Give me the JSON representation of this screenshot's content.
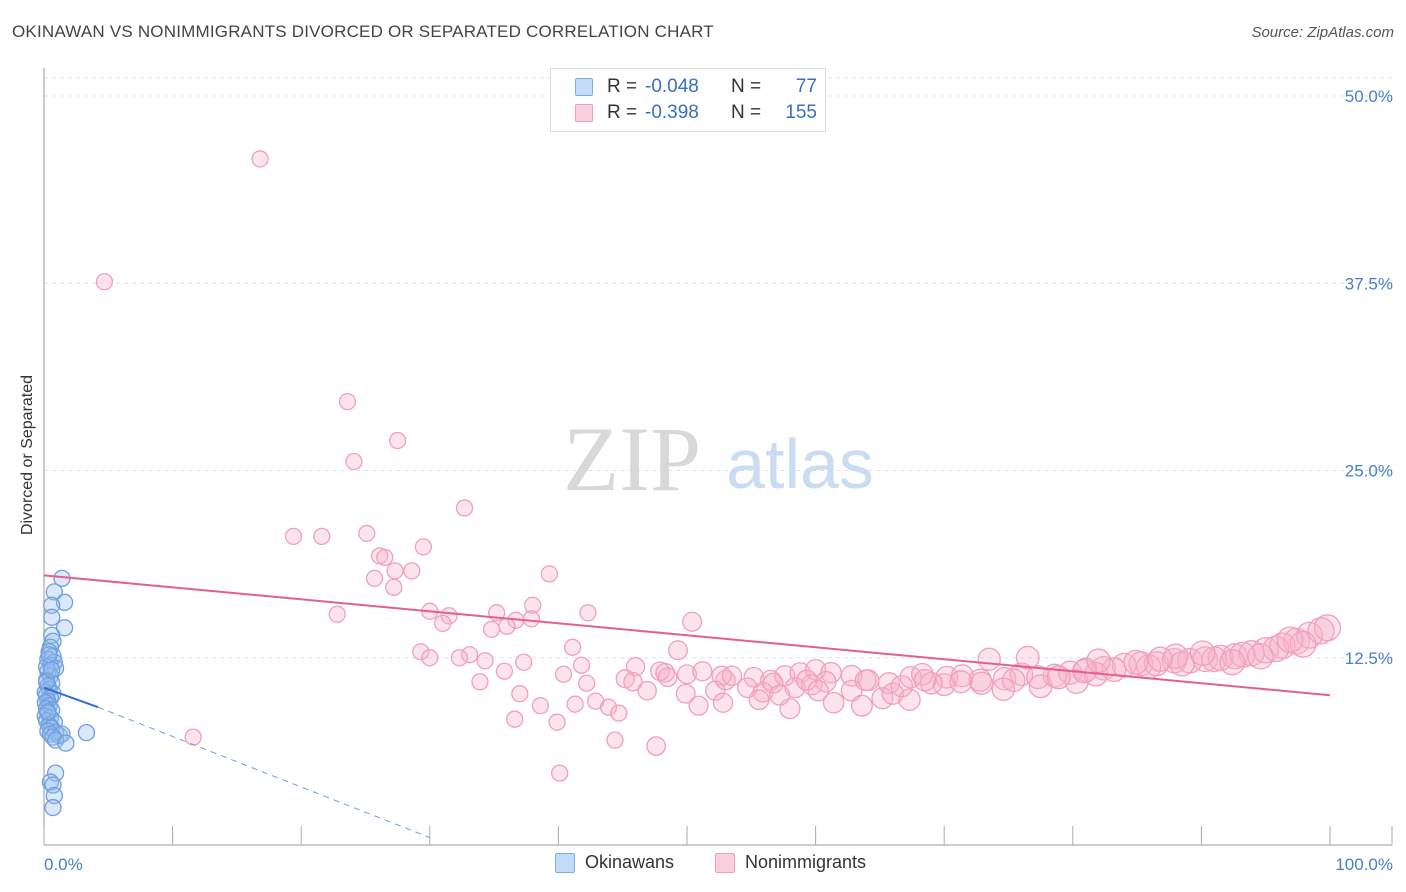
{
  "header": {
    "title": "OKINAWAN VS NONIMMIGRANTS DIVORCED OR SEPARATED CORRELATION CHART",
    "source": "Source: ZipAtlas.com"
  },
  "legend": {
    "rows": [
      {
        "r_label": "R =",
        "r_value": "-0.048",
        "n_label": "N =",
        "n_value": "77",
        "color": "#7aaee8"
      },
      {
        "r_label": "R =",
        "r_value": "-0.398",
        "n_label": "N =",
        "n_value": "155",
        "color": "#f0a0b8"
      }
    ]
  },
  "bottom_legend": {
    "okinawans": "Okinawans",
    "nonimmigrants": "Nonimmigrants"
  },
  "watermark": {
    "zip": "ZIP",
    "atlas": "atlas"
  },
  "chart_data": {
    "type": "scatter",
    "title": "OKINAWAN VS NONIMMIGRANTS DIVORCED OR SEPARATED CORRELATION CHART",
    "xlabel": "",
    "ylabel": "Divorced or Separated",
    "xlim": [
      0,
      100
    ],
    "ylim": [
      0,
      50
    ],
    "x_tick_labels": [
      "0.0%",
      "100.0%"
    ],
    "y_tick_labels": [
      "12.5%",
      "25.0%",
      "37.5%",
      "50.0%"
    ],
    "y_ticks": [
      12.5,
      25.0,
      37.5,
      50.0
    ],
    "grid": true,
    "colors": {
      "okinawans": "#7aaee8",
      "okinawans_line": "#2f6fd0",
      "nonimmigrants": "#f0a0b8",
      "nonimmigrants_line": "#e4608a"
    },
    "series": [
      {
        "name": "Okinawans",
        "trend": {
          "x": [
            0,
            4.2
          ],
          "y": [
            10.5,
            9.2
          ],
          "extended_to_x": 30,
          "extended_y": 0.5
        },
        "points": [
          [
            1.4,
            17.8
          ],
          [
            0.8,
            16.9
          ],
          [
            1.6,
            16.2
          ],
          [
            0.6,
            16.0
          ],
          [
            0.6,
            15.2
          ],
          [
            1.6,
            14.5
          ],
          [
            0.6,
            14.0
          ],
          [
            0.7,
            13.6
          ],
          [
            0.5,
            13.2
          ],
          [
            0.4,
            12.9
          ],
          [
            0.7,
            12.6
          ],
          [
            0.3,
            12.4
          ],
          [
            0.8,
            12.2
          ],
          [
            0.5,
            12.0
          ],
          [
            0.9,
            11.8
          ],
          [
            0.3,
            11.6
          ],
          [
            0.5,
            11.3
          ],
          [
            0.2,
            11.0
          ],
          [
            0.6,
            10.8
          ],
          [
            0.3,
            10.6
          ],
          [
            0.4,
            10.4
          ],
          [
            0.1,
            10.2
          ],
          [
            0.7,
            10.1
          ],
          [
            0.2,
            10.0
          ],
          [
            0.5,
            9.8
          ],
          [
            0.3,
            9.6
          ],
          [
            0.1,
            9.5
          ],
          [
            0.4,
            9.3
          ],
          [
            0.2,
            9.1
          ],
          [
            0.6,
            9.0
          ],
          [
            0.3,
            8.8
          ],
          [
            0.1,
            8.6
          ],
          [
            0.5,
            8.5
          ],
          [
            0.2,
            8.3
          ],
          [
            0.8,
            8.2
          ],
          [
            0.4,
            8.0
          ],
          [
            0.6,
            7.8
          ],
          [
            0.3,
            7.6
          ],
          [
            0.9,
            7.5
          ],
          [
            0.5,
            7.4
          ],
          [
            1.2,
            7.3
          ],
          [
            3.3,
            7.5
          ],
          [
            1.4,
            7.4
          ],
          [
            0.7,
            7.2
          ],
          [
            0.9,
            7.0
          ],
          [
            1.7,
            6.8
          ],
          [
            0.9,
            4.8
          ],
          [
            0.5,
            4.2
          ],
          [
            0.7,
            4.0
          ],
          [
            0.8,
            3.3
          ],
          [
            0.7,
            2.5
          ],
          [
            0.2,
            11.9
          ],
          [
            0.4,
            12.7
          ],
          [
            0.2,
            10.9
          ],
          [
            0.6,
            11.7
          ],
          [
            0.3,
            8.9
          ]
        ]
      },
      {
        "name": "Nonimmigrants",
        "trend": {
          "x": [
            0,
            100
          ],
          "y": [
            18.0,
            10.0
          ]
        },
        "points": [
          [
            16.8,
            45.8
          ],
          [
            4.7,
            37.6
          ],
          [
            23.6,
            29.6
          ],
          [
            27.5,
            27.0
          ],
          [
            24.1,
            25.6
          ],
          [
            32.7,
            22.5
          ],
          [
            19.4,
            20.6
          ],
          [
            21.6,
            20.6
          ],
          [
            25.1,
            20.8
          ],
          [
            29.5,
            19.9
          ],
          [
            26.1,
            19.3
          ],
          [
            26.5,
            19.2
          ],
          [
            27.3,
            18.3
          ],
          [
            28.6,
            18.3
          ],
          [
            25.7,
            17.8
          ],
          [
            39.3,
            18.1
          ],
          [
            27.2,
            17.2
          ],
          [
            38.0,
            16.0
          ],
          [
            42.3,
            15.5
          ],
          [
            22.8,
            15.4
          ],
          [
            30.0,
            15.6
          ],
          [
            31.5,
            15.3
          ],
          [
            35.2,
            15.5
          ],
          [
            36.7,
            15.0
          ],
          [
            37.9,
            15.1
          ],
          [
            31.0,
            14.8
          ],
          [
            36.0,
            14.6
          ],
          [
            34.8,
            14.4
          ],
          [
            50.4,
            14.9
          ],
          [
            41.1,
            13.2
          ],
          [
            29.3,
            12.9
          ],
          [
            33.1,
            12.7
          ],
          [
            32.3,
            12.5
          ],
          [
            30.0,
            12.5
          ],
          [
            49.3,
            13.0
          ],
          [
            34.3,
            12.3
          ],
          [
            37.3,
            12.2
          ],
          [
            41.8,
            12.0
          ],
          [
            46.0,
            11.9
          ],
          [
            50.0,
            11.4
          ],
          [
            53.0,
            11.0
          ],
          [
            47.9,
            11.6
          ],
          [
            35.8,
            11.6
          ],
          [
            40.4,
            11.4
          ],
          [
            45.2,
            11.1
          ],
          [
            48.3,
            11.5
          ],
          [
            52.7,
            11.3
          ],
          [
            55.2,
            11.2
          ],
          [
            56.5,
            11.0
          ],
          [
            57.6,
            11.3
          ],
          [
            58.8,
            11.5
          ],
          [
            60.0,
            11.7
          ],
          [
            61.2,
            11.5
          ],
          [
            62.8,
            11.3
          ],
          [
            64.1,
            11.0
          ],
          [
            65.7,
            10.8
          ],
          [
            67.4,
            11.2
          ],
          [
            68.3,
            11.4
          ],
          [
            70.2,
            11.2
          ],
          [
            71.4,
            11.3
          ],
          [
            72.8,
            11.0
          ],
          [
            74.7,
            11.1
          ],
          [
            76.0,
            11.4
          ],
          [
            77.3,
            11.2
          ],
          [
            78.6,
            11.3
          ],
          [
            79.8,
            11.5
          ],
          [
            81.0,
            11.7
          ],
          [
            82.4,
            11.8
          ],
          [
            84.0,
            12.0
          ],
          [
            85.3,
            12.1
          ],
          [
            86.5,
            12.1
          ],
          [
            87.9,
            12.3
          ],
          [
            89.1,
            12.3
          ],
          [
            90.3,
            12.4
          ],
          [
            91.5,
            12.5
          ],
          [
            92.6,
            12.6
          ],
          [
            93.9,
            12.8
          ],
          [
            95.0,
            13.0
          ],
          [
            96.3,
            13.3
          ],
          [
            97.4,
            13.6
          ],
          [
            98.4,
            14.0
          ],
          [
            99.3,
            14.3
          ],
          [
            42.9,
            9.6
          ],
          [
            43.9,
            9.2
          ],
          [
            44.7,
            8.8
          ],
          [
            46.9,
            10.3
          ],
          [
            50.9,
            9.3
          ],
          [
            52.2,
            10.3
          ],
          [
            54.7,
            10.5
          ],
          [
            55.9,
            10.2
          ],
          [
            58.4,
            10.5
          ],
          [
            59.7,
            10.7
          ],
          [
            62.8,
            10.3
          ],
          [
            65.2,
            9.8
          ],
          [
            66.0,
            10.1
          ],
          [
            67.3,
            9.7
          ],
          [
            70.0,
            10.7
          ],
          [
            71.3,
            10.9
          ],
          [
            74.6,
            10.4
          ],
          [
            77.5,
            10.6
          ],
          [
            80.3,
            10.9
          ],
          [
            48.5,
            11.2
          ],
          [
            51.2,
            11.6
          ],
          [
            53.5,
            11.3
          ],
          [
            56.7,
            10.8
          ],
          [
            60.8,
            10.9
          ],
          [
            63.9,
            11.0
          ],
          [
            66.7,
            10.6
          ],
          [
            69.0,
            10.8
          ],
          [
            72.9,
            10.8
          ],
          [
            75.4,
            11.0
          ],
          [
            78.9,
            11.2
          ],
          [
            81.8,
            11.4
          ],
          [
            83.2,
            11.7
          ],
          [
            85.9,
            11.9
          ],
          [
            88.5,
            12.1
          ],
          [
            91.0,
            12.4
          ],
          [
            93.2,
            12.7
          ],
          [
            95.8,
            13.1
          ],
          [
            97.9,
            13.4
          ],
          [
            88.0,
            12.6
          ],
          [
            76.5,
            12.5
          ],
          [
            73.5,
            12.4
          ],
          [
            80.9,
            11.6
          ],
          [
            84.9,
            12.2
          ],
          [
            90.1,
            12.8
          ],
          [
            92.4,
            12.2
          ],
          [
            94.6,
            12.6
          ],
          [
            96.9,
            13.7
          ],
          [
            99.8,
            14.5
          ],
          [
            36.6,
            8.4
          ],
          [
            39.9,
            8.2
          ],
          [
            44.4,
            7.0
          ],
          [
            47.6,
            6.6
          ],
          [
            37.0,
            10.1
          ],
          [
            38.6,
            9.3
          ],
          [
            41.3,
            9.4
          ],
          [
            58.0,
            9.1
          ],
          [
            61.4,
            9.5
          ],
          [
            63.6,
            9.3
          ],
          [
            11.6,
            7.2
          ],
          [
            40.1,
            4.8
          ],
          [
            33.9,
            10.9
          ],
          [
            42.2,
            10.8
          ],
          [
            45.8,
            10.9
          ],
          [
            49.9,
            10.1
          ],
          [
            52.8,
            9.5
          ],
          [
            55.6,
            9.7
          ],
          [
            57.2,
            10.0
          ],
          [
            59.3,
            11.0
          ],
          [
            60.2,
            10.3
          ],
          [
            68.5,
            11.0
          ],
          [
            82.0,
            12.3
          ],
          [
            86.8,
            12.4
          ]
        ]
      }
    ]
  }
}
